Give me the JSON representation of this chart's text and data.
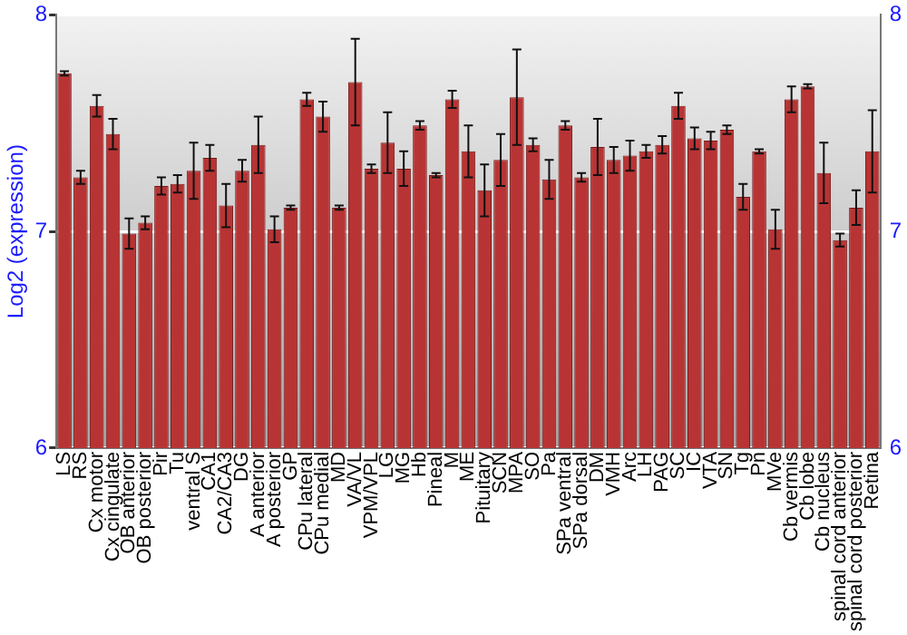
{
  "chart_data": {
    "type": "bar",
    "ylabel": "Log2 (expression)",
    "categories": [
      "LS",
      "RS",
      "Cx motor",
      "Cx cingulate",
      "OB anterior",
      "OB posterior",
      "Pir",
      "Tu",
      "ventral S",
      "CA1",
      "CA2/CA3",
      "DG",
      "A anterior",
      "A posterior",
      "GP",
      "CPu lateral",
      "CPu medial",
      "MD",
      "VA/VL",
      "VPM/VPL",
      "LG",
      "MG",
      "Hb",
      "Pineal",
      "M",
      "ME",
      "Pituitary",
      "SCN",
      "MPA",
      "SO",
      "Pa",
      "SPa ventral",
      "SPa dorsal",
      "DM",
      "VMH",
      "Arc",
      "LH",
      "PAG",
      "SC",
      "IC",
      "VTA",
      "SN",
      "Tg",
      "Pn",
      "MVe",
      "Cb vermis",
      "Cb lobe",
      "Cb nucleus",
      "spinal cord anterior",
      "spinal cord posterior",
      "Retina"
    ],
    "values": [
      7.73,
      7.25,
      7.58,
      7.45,
      6.99,
      7.04,
      7.21,
      7.22,
      7.28,
      7.34,
      7.12,
      7.28,
      7.4,
      7.01,
      7.11,
      7.61,
      7.53,
      7.11,
      7.69,
      7.29,
      7.41,
      7.29,
      7.49,
      7.26,
      7.61,
      7.37,
      7.19,
      7.33,
      7.62,
      7.4,
      7.24,
      7.49,
      7.25,
      7.39,
      7.33,
      7.35,
      7.37,
      7.4,
      7.58,
      7.43,
      7.42,
      7.47,
      7.16,
      7.37,
      7.01,
      7.61,
      7.67,
      7.27,
      6.96,
      7.11,
      7.37
    ],
    "errors": [
      0.01,
      0.03,
      0.05,
      0.07,
      0.07,
      0.03,
      0.04,
      0.04,
      0.13,
      0.06,
      0.1,
      0.05,
      0.13,
      0.06,
      0.01,
      0.03,
      0.07,
      0.01,
      0.2,
      0.02,
      0.14,
      0.08,
      0.02,
      0.01,
      0.04,
      0.12,
      0.12,
      0.12,
      0.22,
      0.03,
      0.09,
      0.02,
      0.02,
      0.13,
      0.06,
      0.07,
      0.03,
      0.04,
      0.06,
      0.05,
      0.04,
      0.02,
      0.06,
      0.01,
      0.09,
      0.06,
      0.01,
      0.14,
      0.03,
      0.08,
      0.19
    ],
    "color": "#b83434",
    "ylim": [
      6,
      8
    ],
    "yticks": [
      6,
      7,
      8
    ],
    "y2lim": [
      6,
      8
    ],
    "y2ticks": [
      6,
      7,
      8
    ],
    "grid": "y"
  }
}
